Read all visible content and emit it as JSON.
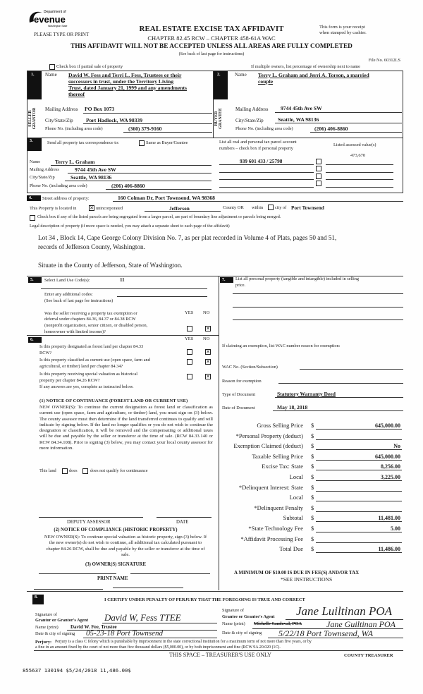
{
  "header": {
    "logo_text": "Department of Revenue Washington State",
    "please_type": "PLEASE TYPE OR PRINT",
    "title": "REAL ESTATE EXCISE TAX AFFIDAVIT",
    "subtitle": "CHAPTER 82.45 RCW – CHAPTER 458-61A WAC",
    "receipt_line1": "This form is your receipt",
    "receipt_line2": "when stamped by cashier.",
    "warning": "THIS AFFIDAVIT WILL NOT BE ACCEPTED UNLESS ALL AREAS ARE FULLY COMPLETED",
    "see_back": "(See back of last page for instructions)",
    "file_no": "File No. 60312LS",
    "partial_sale": "Check box if partial sale of property",
    "multiple_owners": "If multiple owners, list percentage of ownership next to name"
  },
  "seller": {
    "num": "1.",
    "side_label": "SELLER GRANTOR",
    "name_label": "Name",
    "name_lines": [
      "David W. Fess and Terri L. Fess, Trustees or their",
      "successors in trust, under the Territory Living",
      "Trust, dated January 21, 1999 and any amendments",
      "thereof"
    ],
    "mailing_label": "Mailing Address",
    "mailing": "PO Box 1073",
    "city_label": "City/State/Zip",
    "city": "Port Hadlock, WA 98339",
    "phone_label": "Phone No. (including area code)",
    "phone": "(360) 379-9160"
  },
  "buyer": {
    "num": "2.",
    "side_label": "BUYER GRANTEE",
    "name_label": "Name",
    "name_lines": [
      "Terry L. Graham and Jerri A. Torson, a married",
      "couple"
    ],
    "mailing_label": "Mailing Address",
    "mailing": "9744 45th Ave SW",
    "city_label": "City/State/Zip",
    "city": "Seattle, WA 98136",
    "phone_label": "Phone No. (including area code)",
    "phone": "(206) 406-8860"
  },
  "correspondence": {
    "num": "3.",
    "label": "Send all property tax correspondence to:",
    "same_as": "Same as Buyer/Grantee",
    "name_label": "Name",
    "name": "Terry L. Graham",
    "mailing_label": "Mailing Address",
    "mailing": "9744 45th Ave SW",
    "city_label": "City/State/Zip",
    "city": "Seattle, WA 98136",
    "phone_label": "Phone No. (including area code)",
    "phone": "(206) 406-8860",
    "parcel_label1": "List all real and personal tax parcel account",
    "parcel_label2": "numbers – check box if personal property",
    "assessed_label": "Listed assessed value(s)",
    "parcel": "939 601 433 / 25798",
    "assessed": "473,670"
  },
  "property": {
    "num": "4.",
    "street_label": "Street address of property:",
    "street": "160 Colman Dr, Port Townsend, WA  98368",
    "located_in": "This Property is located in",
    "unincorporated": "unincorporated",
    "county": "Jefferson",
    "county_or": "County OR",
    "within": "within",
    "city_of": "city of",
    "city": "Port Townsend",
    "segregated": "Check box if any of the listed parcels are being segregated from a larger parcel, are part of boundary line adjustment or parcels being merged.",
    "legal_label": "Legal description of property (if more space is needed, you may attach a separate sheet to each page of the affidavit)",
    "legal_line1": "Lot 34 , Block 14, Cape George Colony Division No. 7, as per plat recorded in Volume 4 of Plats, pages 50 and 51,",
    "legal_line2": "records of Jefferson County, Washington.",
    "situate": "Situate in the County of Jefferson, State of Washington."
  },
  "section5": {
    "num": "5.",
    "land_use_label": "Select Land Use Code(s):",
    "land_use": "11",
    "additional_label": "Enter any additional codes:",
    "additional_note": "(See back of last page for instructions)",
    "yes": "YES",
    "no": "NO",
    "q1": [
      "Was the seller receiving a property tax exemption or",
      "deferral under chapters 84.36, 84.37 or 84.38 RCW",
      "(nonprofit organization, senior citizen, or disabled person,",
      "homeowner with limited income)?"
    ]
  },
  "section6": {
    "num": "6.",
    "yes": "YES",
    "no": "NO",
    "q1": [
      "Is this property designated as forest land per chapter 84.33",
      "RCW?"
    ],
    "q2": [
      "Is this property classified as current use (open space, farm and",
      "agricultural, or timber) land per chapter 84.34?"
    ],
    "q3": [
      "Is this property receiving special valuation as historical",
      "property per chapter 84.26 RCW?"
    ],
    "if_yes": "If any answers are yes, complete as instructed below.",
    "notice1_title": "(1) NOTICE OF CONTINUANCE (FOREST LAND OR CURRENT USE)",
    "notice1_text": "NEW OWNER(S): To continue the current designation as forest land or classification as current use (open space, farm and agriculture, or timber) land, you must sign on (3) below. The county assessor must then determine if the land transferred continues to qualify and will indicate by signing below. If the land no longer qualifies or you do not wish to continue the designation or classification, it will be removed and the compensating or additional taxes will be due and payable by the seller or transferor at the time of sale. (RCW 84.33.140 or RCW 84.34.108). Prior to signing (3) below, you may contact your local county assessor for more information.",
    "this_land": "This land",
    "does": "does",
    "does_not": "does not  qualify for continuance",
    "deputy": "DEPUTY ASSESSOR",
    "date": "DATE",
    "notice2_title": "(2) NOTICE OF COMPLIANCE (HISTORIC PROPERTY)",
    "notice2_text": "NEW OWNER(S): To continue special valuation as historic property, sign (3) below. If the new owner(s) do not wish to continue, all additional tax calculated pursuant to chapter 84.26 RCW, shall be due and payable by the seller or transferor at the time of sale.",
    "owner_sig": "(3)  OWNER(S) SIGNATURE",
    "print_name": "PRINT NAME"
  },
  "section7": {
    "num": "7.",
    "personal_label": "List all personal property (tangible and intangible) included in selling",
    "personal_label2": "price.",
    "exemption_label": "If claiming an exemption, list WAC number reason for exemption:",
    "wac_label": "WAC No. (Section/Subsection)",
    "reason_label": "Reason for exemption",
    "doc_type_label": "Type of Document",
    "doc_type": "Statutory Warranty Deed",
    "doc_date_label": "Date of Document",
    "doc_date": "May 18, 2018",
    "currency": "$",
    "rows": [
      {
        "label": "Gross Selling Price",
        "value": "645,000.00"
      },
      {
        "label": "*Personal Property (deduct)",
        "value": ""
      },
      {
        "label": "Exemption Claimed (deduct)",
        "value": "No"
      },
      {
        "label": "Taxable Selling Price",
        "value": "645,000.00"
      },
      {
        "label": "Excise Tax:  State",
        "value": "8,256.00"
      },
      {
        "label": "Local",
        "value": "3,225.00"
      },
      {
        "label": "*Delinquent Interest:  State",
        "value": ""
      },
      {
        "label": "Local",
        "value": ""
      },
      {
        "label": "*Delinquent Penalty",
        "value": ""
      },
      {
        "label": "Subtotal",
        "value": "11,481.00"
      },
      {
        "label": "*State Technology Fee",
        "value": "5.00"
      },
      {
        "label": "*Affidavit Processing Fee",
        "value": ""
      },
      {
        "label": "Total Due",
        "value": "11,486.00"
      }
    ],
    "minimum": "A MINIMUM OF $10.00 IS DUE IN FEE(S) AND/OR TAX",
    "see_instructions": "*SEE INSTRUCTIONS"
  },
  "section8": {
    "num": "8.",
    "certify": "I CERTIFY UNDER PENALTY OF PERJURY THAT THE FOREGOING IS TRUE AND CORRECT",
    "grantor_sig_label1": "Signature of",
    "grantor_sig_label2": "Grantor or Grantor's Agent",
    "grantor_signature": "David W, Fess TTEE",
    "grantor_name_label": "Name (print)",
    "grantor_name": "David W. Fee, Trustee",
    "grantor_date_label": "Date & city of signing",
    "grantor_date": "05-23-18   Port Townsend",
    "grantee_sig_label1": "Signature of",
    "grantee_sig_label2": "Grantee or Grantee's Agent",
    "grantee_signature": "Jane Luiltinan POA",
    "grantee_name_label": "Name (print)",
    "grantee_name_struck": "Michelle Sandoval, POA",
    "grantee_name": "Jane Guiltinan POA",
    "grantee_date_label": "Date & city of signing",
    "grantee_date": "5/22/18  Port Townsend, WA",
    "perjury_label": "Perjury:",
    "perjury_text1": "Perjury is a class C felony which is punishable by imprisonment in the state correctional institution for a maximum term of not more than five years, or by",
    "perjury_text2": "a fine in an amount fixed by the court of not more than five thousand dollars ($5,000.00), or by both imprisonment and fine (RCW 9A.20.020 (1C).",
    "treasurer_use": "THIS SPACE – TREASURER'S USE ONLY",
    "county_treasurer": "COUNTY TREASURER"
  },
  "stamp": "855637 130194 $5/24/2018 11,486.00$"
}
